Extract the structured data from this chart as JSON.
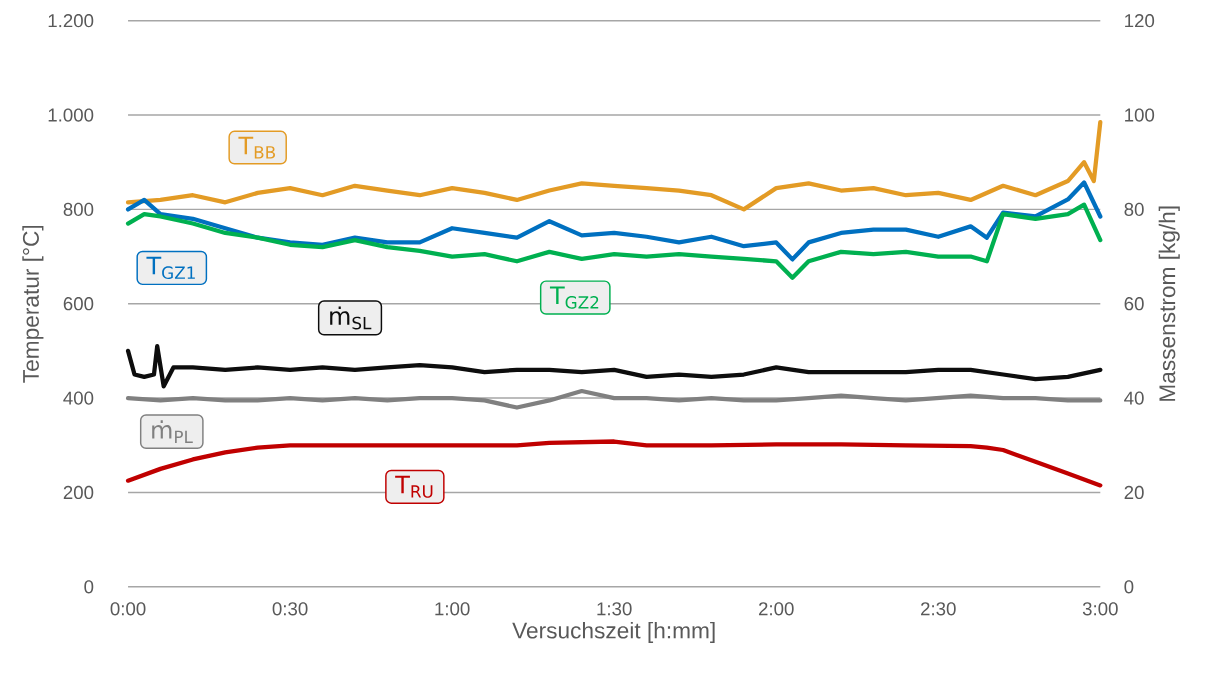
{
  "chart_data": {
    "type": "line",
    "xlabel": "Versuchszeit [h:mm]",
    "ylabel": "Temperatur [°C]",
    "y2label": "Massenstrom [kg/h]",
    "xlim": [
      0,
      3
    ],
    "xticks": [
      {
        "value": 0,
        "label": "0:00"
      },
      {
        "value": 0.5,
        "label": "0:30"
      },
      {
        "value": 1,
        "label": "1:00"
      },
      {
        "value": 1.5,
        "label": "1:30"
      },
      {
        "value": 2,
        "label": "2:00"
      },
      {
        "value": 2.5,
        "label": "2:30"
      },
      {
        "value": 3,
        "label": "3:00"
      }
    ],
    "ylim": [
      0,
      1200
    ],
    "yticks": [
      0,
      200,
      400,
      600,
      800,
      {
        "value": 1000,
        "label": "1.000"
      },
      {
        "value": 1200,
        "label": "1.200"
      }
    ],
    "y2lim": [
      0,
      120
    ],
    "y2ticks": [
      0,
      20,
      40,
      60,
      80,
      100,
      120
    ],
    "grid": "y",
    "legend": "left",
    "series": [
      {
        "name": "T$_{BB}$",
        "color": "#e39b25",
        "x": [
          0,
          0.1,
          0.2,
          0.3,
          0.4,
          0.5,
          0.6,
          0.7,
          0.8,
          0.9,
          1.0,
          1.1,
          1.2,
          1.3,
          1.4,
          1.5,
          1.6,
          1.7,
          1.8,
          1.9,
          2.0,
          2.1,
          2.2,
          2.3,
          2.4,
          2.5,
          2.6,
          2.7,
          2.8,
          2.9,
          2.95,
          2.98,
          3.0
        ],
        "values": [
          815,
          820,
          830,
          815,
          835,
          845,
          830,
          850,
          840,
          830,
          845,
          835,
          820,
          840,
          855,
          850,
          845,
          840,
          830,
          800,
          845,
          855,
          840,
          845,
          830,
          835,
          820,
          850,
          830,
          860,
          900,
          860,
          985
        ]
      },
      {
        "name": "T$_{GZ1}$",
        "color": "#0070c0",
        "x": [
          0,
          0.05,
          0.1,
          0.2,
          0.3,
          0.4,
          0.5,
          0.6,
          0.7,
          0.8,
          0.9,
          1.0,
          1.1,
          1.2,
          1.3,
          1.4,
          1.5,
          1.6,
          1.7,
          1.8,
          1.9,
          2.0,
          2.05,
          2.1,
          2.2,
          2.3,
          2.4,
          2.5,
          2.6,
          2.65,
          2.7,
          2.8,
          2.9,
          2.95,
          3.0
        ],
        "values": [
          800,
          820,
          790,
          780,
          760,
          740,
          730,
          725,
          740,
          730,
          730,
          760,
          750,
          740,
          775,
          745,
          750,
          742,
          730,
          742,
          722,
          730,
          694,
          730,
          750,
          757,
          757,
          742,
          764,
          740,
          793,
          785,
          821,
          857,
          785
        ]
      },
      {
        "name": "T$_{GZ2}$",
        "color": "#00b050",
        "x": [
          0,
          0.05,
          0.1,
          0.2,
          0.3,
          0.4,
          0.5,
          0.6,
          0.7,
          0.8,
          0.9,
          1.0,
          1.1,
          1.2,
          1.3,
          1.4,
          1.5,
          1.6,
          1.7,
          1.8,
          1.9,
          2.0,
          2.05,
          2.1,
          2.2,
          2.3,
          2.4,
          2.5,
          2.6,
          2.65,
          2.7,
          2.8,
          2.9,
          2.95,
          3.0
        ],
        "values": [
          770,
          790,
          785,
          770,
          750,
          740,
          725,
          720,
          735,
          720,
          712,
          700,
          705,
          690,
          710,
          695,
          705,
          700,
          705,
          700,
          695,
          690,
          655,
          690,
          710,
          705,
          710,
          700,
          700,
          690,
          790,
          780,
          790,
          810,
          735
        ]
      },
      {
        "name": "ṁ$_{SL}$",
        "color": "#0d0d0d",
        "axis": "y2",
        "x": [
          0,
          0.02,
          0.05,
          0.08,
          0.09,
          0.11,
          0.14,
          0.2,
          0.3,
          0.4,
          0.5,
          0.6,
          0.7,
          0.8,
          0.9,
          1.0,
          1.1,
          1.2,
          1.3,
          1.4,
          1.5,
          1.6,
          1.7,
          1.8,
          1.9,
          2.0,
          2.1,
          2.2,
          2.3,
          2.4,
          2.5,
          2.6,
          2.7,
          2.8,
          2.9,
          3.0
        ],
        "values": [
          50,
          45,
          44.5,
          45,
          51,
          42.5,
          46.5,
          46.5,
          46,
          46.5,
          46,
          46.5,
          46,
          46.5,
          47,
          46.5,
          45.5,
          46,
          46,
          45.5,
          46,
          44.5,
          45,
          44.5,
          45,
          46.5,
          45.5,
          45.5,
          45.5,
          45.5,
          46,
          46,
          45,
          44,
          44.5,
          46
        ]
      },
      {
        "name": "ṁ$_{PL}$",
        "color": "#808080",
        "axis": "y2",
        "x": [
          0,
          0.1,
          0.2,
          0.3,
          0.4,
          0.5,
          0.6,
          0.7,
          0.8,
          0.9,
          1.0,
          1.1,
          1.2,
          1.3,
          1.4,
          1.5,
          1.6,
          1.7,
          1.8,
          1.9,
          2.0,
          2.1,
          2.2,
          2.3,
          2.4,
          2.5,
          2.6,
          2.7,
          2.8,
          2.9,
          3.0
        ],
        "values": [
          40,
          39.5,
          40,
          39.5,
          39.5,
          40,
          39.5,
          40,
          39.5,
          40,
          40,
          39.5,
          38,
          39.5,
          41.5,
          40,
          40,
          39.5,
          40,
          39.5,
          39.5,
          40,
          40.5,
          40,
          39.5,
          40,
          40.5,
          40,
          40,
          39.5,
          39.5
        ]
      },
      {
        "name": "T$_{RU}$",
        "color": "#c00000",
        "x": [
          0,
          0.1,
          0.2,
          0.3,
          0.4,
          0.5,
          0.8,
          1.0,
          1.2,
          1.3,
          1.5,
          1.6,
          1.8,
          2.0,
          2.2,
          2.4,
          2.6,
          2.65,
          2.7,
          2.8,
          2.9,
          3.0
        ],
        "values": [
          225,
          250,
          270,
          285,
          295,
          300,
          300,
          300,
          300,
          305,
          308,
          300,
          300,
          302,
          302,
          300,
          298,
          295,
          290,
          265,
          240,
          215
        ]
      }
    ]
  }
}
